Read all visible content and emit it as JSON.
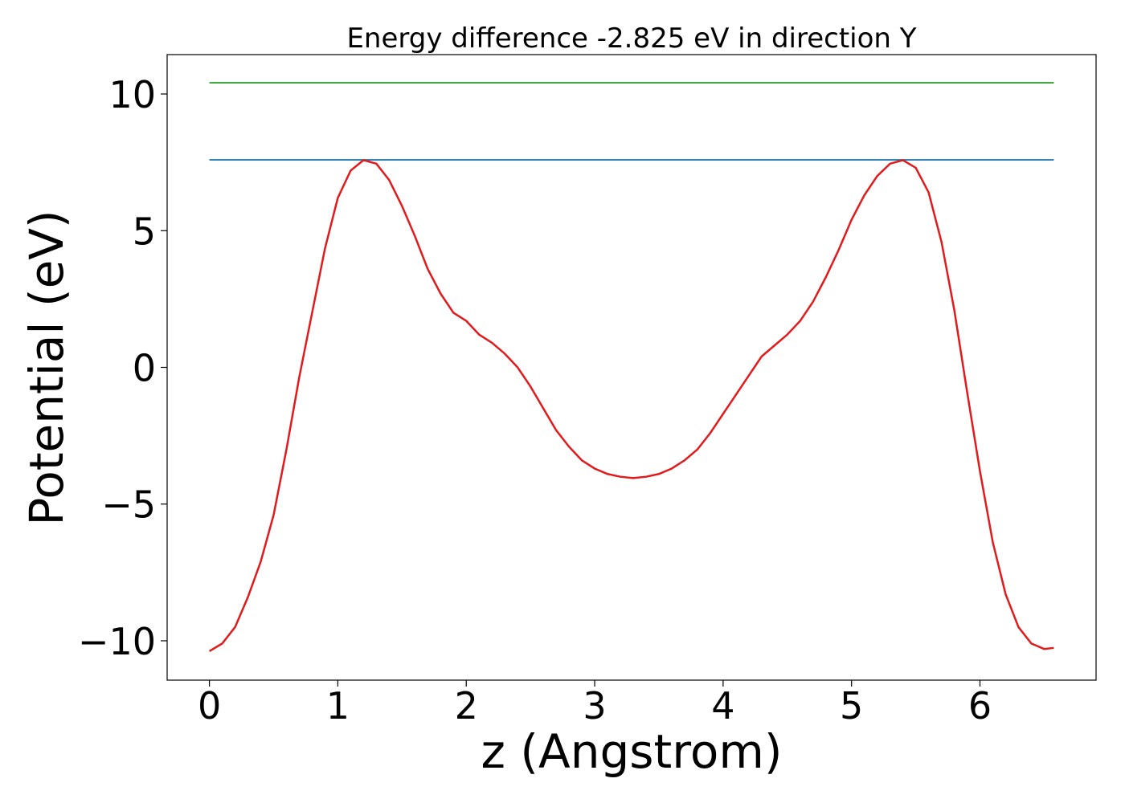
{
  "chart_data": {
    "type": "line",
    "title": "Energy difference -2.825 eV in direction Y",
    "xlabel": "z (Angstrom)",
    "ylabel": "Potential (eV)",
    "xlim": [
      -0.329,
      6.904
    ],
    "xticks": [
      0,
      1,
      2,
      3,
      4,
      5,
      6
    ],
    "ylim": [
      -11.44,
      11.44
    ],
    "yticks": [
      {
        "value": -10,
        "label": "−10"
      },
      {
        "value": -5,
        "label": "−5"
      },
      0,
      5,
      10
    ],
    "series": [
      {
        "color": "#1f77b4",
        "x": [
          0,
          6.575
        ],
        "values": [
          7.59,
          7.59
        ]
      },
      {
        "color": "#2ca02c",
        "x": [
          0,
          6.575
        ],
        "values": [
          10.41,
          10.41
        ]
      },
      {
        "color": "#e31a1c",
        "x": [
          0,
          0.1,
          0.2,
          0.3,
          0.4,
          0.5,
          0.6,
          0.7,
          0.8,
          0.9,
          1.0,
          1.1,
          1.2,
          1.3,
          1.4,
          1.5,
          1.6,
          1.7,
          1.8,
          1.9,
          2.0,
          2.1,
          2.2,
          2.3,
          2.4,
          2.5,
          2.6,
          2.7,
          2.8,
          2.9,
          3.0,
          3.1,
          3.2,
          3.3,
          3.4,
          3.5,
          3.6,
          3.7,
          3.8,
          3.9,
          4.0,
          4.1,
          4.2,
          4.3,
          4.4,
          4.5,
          4.6,
          4.7,
          4.8,
          4.9,
          5.0,
          5.1,
          5.2,
          5.3,
          5.4,
          5.5,
          5.6,
          5.7,
          5.8,
          5.9,
          6.0,
          6.1,
          6.2,
          6.3,
          6.4,
          6.5,
          6.575
        ],
        "values": [
          -10.38,
          -10.1,
          -9.5,
          -8.4,
          -7.1,
          -5.4,
          -3.0,
          -0.35,
          2.0,
          4.35,
          6.2,
          7.2,
          7.58,
          7.45,
          6.85,
          5.9,
          4.8,
          3.6,
          2.7,
          2.0,
          1.7,
          1.2,
          0.9,
          0.5,
          0.0,
          -0.7,
          -1.5,
          -2.3,
          -2.9,
          -3.4,
          -3.7,
          -3.9,
          -4.0,
          -4.05,
          -4.0,
          -3.9,
          -3.7,
          -3.4,
          -3.0,
          -2.4,
          -1.7,
          -1.0,
          -0.3,
          0.4,
          0.8,
          1.2,
          1.7,
          2.4,
          3.3,
          4.3,
          5.4,
          6.3,
          7.0,
          7.45,
          7.58,
          7.3,
          6.4,
          4.6,
          2.1,
          -0.9,
          -3.8,
          -6.4,
          -8.3,
          -9.5,
          -10.1,
          -10.3,
          -10.26
        ]
      }
    ]
  }
}
